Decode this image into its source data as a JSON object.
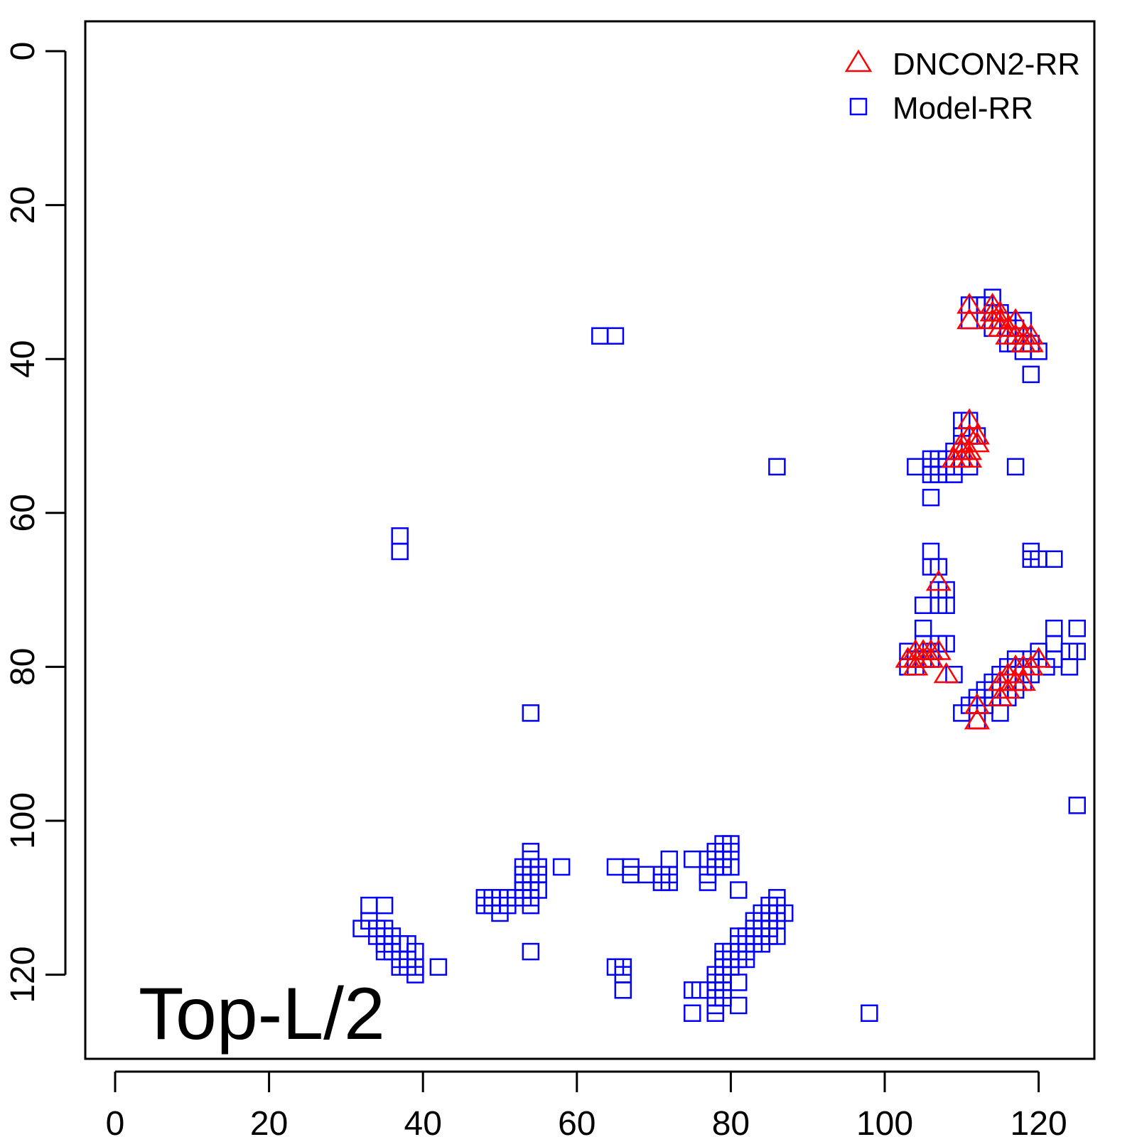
{
  "chart_data": {
    "type": "scatter",
    "title": "",
    "xlabel": "",
    "ylabel": "",
    "xlim": [
      -4,
      131
    ],
    "ylim": [
      131,
      -4
    ],
    "y_axis_reversed": true,
    "grid": false,
    "x_ticks": [
      0,
      20,
      40,
      60,
      80,
      100,
      120
    ],
    "y_ticks": [
      0,
      20,
      40,
      60,
      80,
      100,
      120
    ],
    "x_tick_labels": [
      "0",
      "20",
      "40",
      "60",
      "80",
      "100",
      "120"
    ],
    "y_tick_labels": [
      "0",
      "20",
      "40",
      "60",
      "80",
      "100",
      "120"
    ],
    "annotation": "Top-L/2",
    "legend": {
      "position": "top-right"
    },
    "series": [
      {
        "name": "Model-RR",
        "marker": "square",
        "color": "#0000ff",
        "points": [
          [
            63,
            37
          ],
          [
            65,
            37
          ],
          [
            111,
            33
          ],
          [
            111,
            35
          ],
          [
            112,
            33
          ],
          [
            113,
            33
          ],
          [
            114,
            32
          ],
          [
            114,
            34
          ],
          [
            114,
            36
          ],
          [
            115,
            34
          ],
          [
            115,
            35
          ],
          [
            116,
            35
          ],
          [
            116,
            36
          ],
          [
            116,
            38
          ],
          [
            117,
            36
          ],
          [
            117,
            37
          ],
          [
            117,
            38
          ],
          [
            118,
            35
          ],
          [
            118,
            37
          ],
          [
            118,
            39
          ],
          [
            119,
            38
          ],
          [
            119,
            42
          ],
          [
            120,
            39
          ],
          [
            86,
            54
          ],
          [
            104,
            54
          ],
          [
            106,
            53
          ],
          [
            106,
            54
          ],
          [
            106,
            55
          ],
          [
            106,
            58
          ],
          [
            107,
            53
          ],
          [
            107,
            54
          ],
          [
            107,
            55
          ],
          [
            108,
            53
          ],
          [
            108,
            54
          ],
          [
            109,
            52
          ],
          [
            109,
            54
          ],
          [
            109,
            55
          ],
          [
            110,
            48
          ],
          [
            110,
            50
          ],
          [
            110,
            51
          ],
          [
            110,
            52
          ],
          [
            110,
            53
          ],
          [
            111,
            48
          ],
          [
            111,
            50
          ],
          [
            111,
            54
          ],
          [
            112,
            50
          ],
          [
            117,
            54
          ],
          [
            37,
            63
          ],
          [
            37,
            65
          ],
          [
            106,
            65
          ],
          [
            106,
            67
          ],
          [
            107,
            67
          ],
          [
            107,
            70
          ],
          [
            107,
            72
          ],
          [
            108,
            70
          ],
          [
            108,
            72
          ],
          [
            105,
            72
          ],
          [
            119,
            65
          ],
          [
            119,
            66
          ],
          [
            120,
            66
          ],
          [
            122,
            66
          ],
          [
            103,
            78
          ],
          [
            103,
            80
          ],
          [
            104,
            79
          ],
          [
            104,
            80
          ],
          [
            105,
            75
          ],
          [
            105,
            77
          ],
          [
            105,
            79
          ],
          [
            106,
            78
          ],
          [
            106,
            79
          ],
          [
            107,
            77
          ],
          [
            108,
            77
          ],
          [
            109,
            81
          ],
          [
            110,
            86
          ],
          [
            111,
            85
          ],
          [
            112,
            84
          ],
          [
            112,
            85
          ],
          [
            112,
            87
          ],
          [
            113,
            83
          ],
          [
            113,
            85
          ],
          [
            114,
            82
          ],
          [
            114,
            84
          ],
          [
            115,
            81
          ],
          [
            115,
            83
          ],
          [
            115,
            86
          ],
          [
            116,
            80
          ],
          [
            116,
            82
          ],
          [
            116,
            84
          ],
          [
            117,
            79
          ],
          [
            117,
            81
          ],
          [
            117,
            83
          ],
          [
            118,
            80
          ],
          [
            118,
            82
          ],
          [
            119,
            79
          ],
          [
            119,
            81
          ],
          [
            120,
            78
          ],
          [
            121,
            80
          ],
          [
            122,
            75
          ],
          [
            122,
            77
          ],
          [
            122,
            79
          ],
          [
            124,
            78
          ],
          [
            124,
            80
          ],
          [
            125,
            75
          ],
          [
            125,
            78
          ],
          [
            125,
            98
          ],
          [
            54,
            86
          ],
          [
            54,
            104
          ],
          [
            53,
            106
          ],
          [
            53,
            107
          ],
          [
            53,
            108
          ],
          [
            53,
            109
          ],
          [
            53,
            110
          ],
          [
            54,
            105
          ],
          [
            54,
            106
          ],
          [
            54,
            107
          ],
          [
            54,
            108
          ],
          [
            54,
            109
          ],
          [
            54,
            110
          ],
          [
            54,
            111
          ],
          [
            55,
            106
          ],
          [
            55,
            107
          ],
          [
            55,
            109
          ],
          [
            58,
            106
          ],
          [
            48,
            110
          ],
          [
            48,
            111
          ],
          [
            49,
            110
          ],
          [
            49,
            111
          ],
          [
            50,
            110
          ],
          [
            50,
            112
          ],
          [
            51,
            110
          ],
          [
            51,
            111
          ],
          [
            52,
            110
          ],
          [
            65,
            106
          ],
          [
            67,
            106
          ],
          [
            67,
            107
          ],
          [
            69,
            107
          ],
          [
            71,
            107
          ],
          [
            71,
            108
          ],
          [
            72,
            105
          ],
          [
            72,
            107
          ],
          [
            72,
            108
          ],
          [
            75,
            105
          ],
          [
            77,
            105
          ],
          [
            77,
            107
          ],
          [
            77,
            108
          ],
          [
            78,
            104
          ],
          [
            78,
            106
          ],
          [
            79,
            103
          ],
          [
            79,
            105
          ],
          [
            79,
            106
          ],
          [
            80,
            103
          ],
          [
            80,
            104
          ],
          [
            80,
            106
          ],
          [
            81,
            109
          ],
          [
            54,
            117
          ],
          [
            32,
            114
          ],
          [
            33,
            111
          ],
          [
            33,
            113
          ],
          [
            34,
            114
          ],
          [
            34,
            115
          ],
          [
            35,
            111
          ],
          [
            35,
            114
          ],
          [
            35,
            115
          ],
          [
            35,
            116
          ],
          [
            35,
            117
          ],
          [
            36,
            115
          ],
          [
            36,
            116
          ],
          [
            36,
            117
          ],
          [
            37,
            116
          ],
          [
            37,
            118
          ],
          [
            37,
            119
          ],
          [
            38,
            116
          ],
          [
            38,
            118
          ],
          [
            38,
            119
          ],
          [
            39,
            117
          ],
          [
            39,
            119
          ],
          [
            39,
            120
          ],
          [
            42,
            119
          ],
          [
            65,
            119
          ],
          [
            66,
            119
          ],
          [
            66,
            120
          ],
          [
            66,
            122
          ],
          [
            75,
            122
          ],
          [
            75,
            125
          ],
          [
            76,
            122
          ],
          [
            78,
            120
          ],
          [
            78,
            121
          ],
          [
            78,
            122
          ],
          [
            78,
            123
          ],
          [
            78,
            124
          ],
          [
            78,
            125
          ],
          [
            79,
            117
          ],
          [
            79,
            118
          ],
          [
            79,
            119
          ],
          [
            79,
            120
          ],
          [
            79,
            121
          ],
          [
            79,
            122
          ],
          [
            79,
            123
          ],
          [
            80,
            117
          ],
          [
            80,
            118
          ],
          [
            80,
            119
          ],
          [
            81,
            121
          ],
          [
            81,
            124
          ],
          [
            81,
            115
          ],
          [
            81,
            116
          ],
          [
            81,
            118
          ],
          [
            82,
            115
          ],
          [
            82,
            116
          ],
          [
            82,
            117
          ],
          [
            82,
            118
          ],
          [
            83,
            113
          ],
          [
            83,
            114
          ],
          [
            83,
            115
          ],
          [
            83,
            116
          ],
          [
            84,
            112
          ],
          [
            84,
            113
          ],
          [
            84,
            114
          ],
          [
            84,
            115
          ],
          [
            84,
            116
          ],
          [
            85,
            111
          ],
          [
            85,
            112
          ],
          [
            85,
            113
          ],
          [
            85,
            114
          ],
          [
            85,
            115
          ],
          [
            86,
            110
          ],
          [
            86,
            111
          ],
          [
            86,
            112
          ],
          [
            86,
            113
          ],
          [
            86,
            115
          ],
          [
            87,
            112
          ],
          [
            98,
            125
          ]
        ]
      },
      {
        "name": "DNCON2-RR",
        "marker": "triangle",
        "color": "#ff0000",
        "points": [
          [
            111,
            33
          ],
          [
            111,
            35
          ],
          [
            114,
            33
          ],
          [
            114,
            34
          ],
          [
            114,
            35
          ],
          [
            115,
            34
          ],
          [
            115,
            35
          ],
          [
            115,
            36
          ],
          [
            116,
            36
          ],
          [
            116,
            37
          ],
          [
            117,
            35
          ],
          [
            117,
            37
          ],
          [
            118,
            37
          ],
          [
            118,
            38
          ],
          [
            119,
            37
          ],
          [
            119,
            38
          ],
          [
            111,
            48
          ],
          [
            111,
            50
          ],
          [
            111,
            52
          ],
          [
            111,
            53
          ],
          [
            112,
            50
          ],
          [
            110,
            51
          ],
          [
            110,
            52
          ],
          [
            110,
            53
          ],
          [
            109,
            53
          ],
          [
            112,
            51
          ],
          [
            107,
            69
          ],
          [
            103,
            79
          ],
          [
            104,
            78
          ],
          [
            104,
            79
          ],
          [
            104,
            80
          ],
          [
            105,
            78
          ],
          [
            105,
            79
          ],
          [
            106,
            78
          ],
          [
            106,
            79
          ],
          [
            107,
            78
          ],
          [
            108,
            81
          ],
          [
            112,
            85
          ],
          [
            112,
            87
          ],
          [
            115,
            82
          ],
          [
            115,
            84
          ],
          [
            116,
            81
          ],
          [
            116,
            83
          ],
          [
            117,
            80
          ],
          [
            117,
            82
          ],
          [
            118,
            80
          ],
          [
            118,
            82
          ],
          [
            119,
            80
          ],
          [
            120,
            79
          ],
          [
            112,
            87
          ]
        ]
      }
    ]
  }
}
